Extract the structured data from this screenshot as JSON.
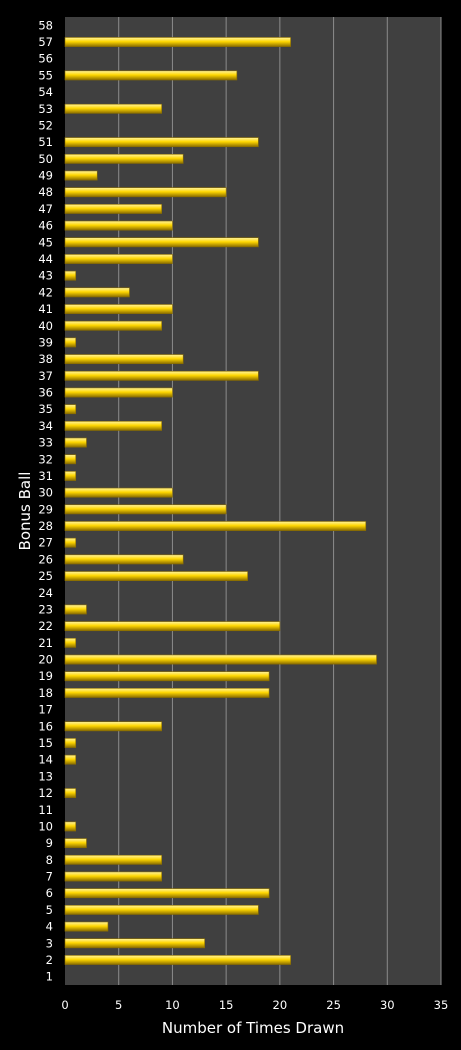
{
  "chart_data": {
    "type": "bar",
    "orientation": "horizontal",
    "xlabel": "Number of Times Drawn",
    "ylabel": "Bonus Ball",
    "xlim": [
      0,
      35
    ],
    "xticks": [
      0,
      5,
      10,
      15,
      20,
      25,
      30,
      35
    ],
    "grid": "vertical",
    "legend": "none",
    "categories": [
      "1",
      "2",
      "3",
      "4",
      "5",
      "6",
      "7",
      "8",
      "9",
      "10",
      "11",
      "12",
      "13",
      "14",
      "15",
      "16",
      "17",
      "18",
      "19",
      "20",
      "21",
      "22",
      "23",
      "24",
      "25",
      "26",
      "27",
      "28",
      "29",
      "30",
      "31",
      "32",
      "33",
      "34",
      "35",
      "36",
      "37",
      "38",
      "39",
      "40",
      "41",
      "42",
      "43",
      "44",
      "45",
      "46",
      "47",
      "48",
      "49",
      "50",
      "51",
      "52",
      "53",
      "54",
      "55",
      "56",
      "57",
      "58"
    ],
    "values": [
      0,
      21,
      13,
      4,
      18,
      19,
      9,
      9,
      2,
      1,
      0,
      1,
      0,
      1,
      1,
      9,
      0,
      19,
      19,
      29,
      1,
      20,
      2,
      0,
      17,
      11,
      1,
      28,
      15,
      10,
      1,
      1,
      2,
      9,
      1,
      10,
      18,
      11,
      1,
      9,
      10,
      6,
      1,
      10,
      18,
      10,
      9,
      15,
      3,
      11,
      18,
      0,
      9,
      0,
      16,
      0,
      21,
      0
    ],
    "colors": {
      "background": "#000000",
      "plot_area": "#404040",
      "gridline": "#8c8c8c",
      "bar": "#ffd700",
      "bar_highlight": "#fff3a0",
      "bar_shadow": "#8a6d00",
      "text": "#ffffff"
    }
  }
}
